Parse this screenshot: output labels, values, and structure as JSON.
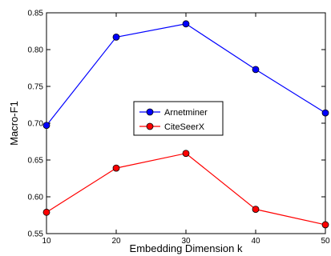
{
  "chart_data": {
    "type": "line",
    "x": [
      10,
      20,
      30,
      40,
      50
    ],
    "xlabel": "Embedding Dimension k",
    "ylabel": "Macro-F1",
    "xlim": [
      10,
      50
    ],
    "ylim": [
      0.55,
      0.85
    ],
    "xticks": [
      "10",
      "20",
      "30",
      "40",
      "50"
    ],
    "yticks": [
      "0.55",
      "0.60",
      "0.65",
      "0.70",
      "0.75",
      "0.80",
      "0.85"
    ],
    "grid": false,
    "legend": "center",
    "series": [
      {
        "name": "Arnetminer",
        "color": "#0000ff",
        "values": [
          0.697,
          0.817,
          0.835,
          0.773,
          0.714
        ]
      },
      {
        "name": "CiteSeerX",
        "color": "#ff0000",
        "values": [
          0.579,
          0.639,
          0.659,
          0.583,
          0.562
        ]
      }
    ]
  }
}
